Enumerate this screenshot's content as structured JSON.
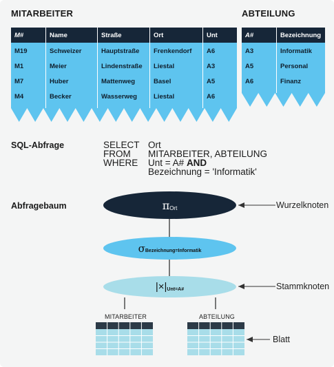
{
  "mitarbeiter": {
    "title": "MITARBEITER",
    "columns": [
      "M#",
      "Name",
      "Straße",
      "Ort",
      "Unt"
    ],
    "rows": [
      [
        "M19",
        "Schweizer",
        "Hauptstraße",
        "Frenkendorf",
        "A6"
      ],
      [
        "M1",
        "Meier",
        "Lindenstraße",
        "Liestal",
        "A3"
      ],
      [
        "M7",
        "Huber",
        "Mattenweg",
        "Basel",
        "A5"
      ],
      [
        "M4",
        "Becker",
        "Wasserweg",
        "Liestal",
        "A6"
      ]
    ]
  },
  "abteilung": {
    "title": "ABTEILUNG",
    "columns": [
      "A#",
      "Bezeichnung"
    ],
    "rows": [
      [
        "A3",
        "Informatik"
      ],
      [
        "A5",
        "Personal"
      ],
      [
        "A6",
        "Finanz"
      ]
    ]
  },
  "sql": {
    "label": "SQL-Abfrage",
    "select_kw": "SELECT",
    "select_val": "Ort",
    "from_kw": "FROM",
    "from_val": "MITARBEITER, ABTEILUNG",
    "where_kw": "WHERE",
    "where_val": "Unt = A#",
    "and_kw": "AND",
    "cond2": "Bezeichnung = 'Informatik'"
  },
  "tree": {
    "label": "Abfragebaum",
    "root_op": "π",
    "root_sub": "Ort",
    "select_op": "σ",
    "select_sub": "Bezeichnung=Informatik",
    "join_op": "|×|",
    "join_sub": "Unt=A#",
    "leaf_left": "MITARBEITER",
    "leaf_right": "ABTEILUNG",
    "annot_root": "Wurzelknoten",
    "annot_join": "Stammknoten",
    "annot_leaf": "Blatt"
  },
  "colors": {
    "dark": "#162638",
    "blue": "#5ec4ef",
    "light_blue": "#a8dde9",
    "grid_dark": "#2c3a47"
  }
}
